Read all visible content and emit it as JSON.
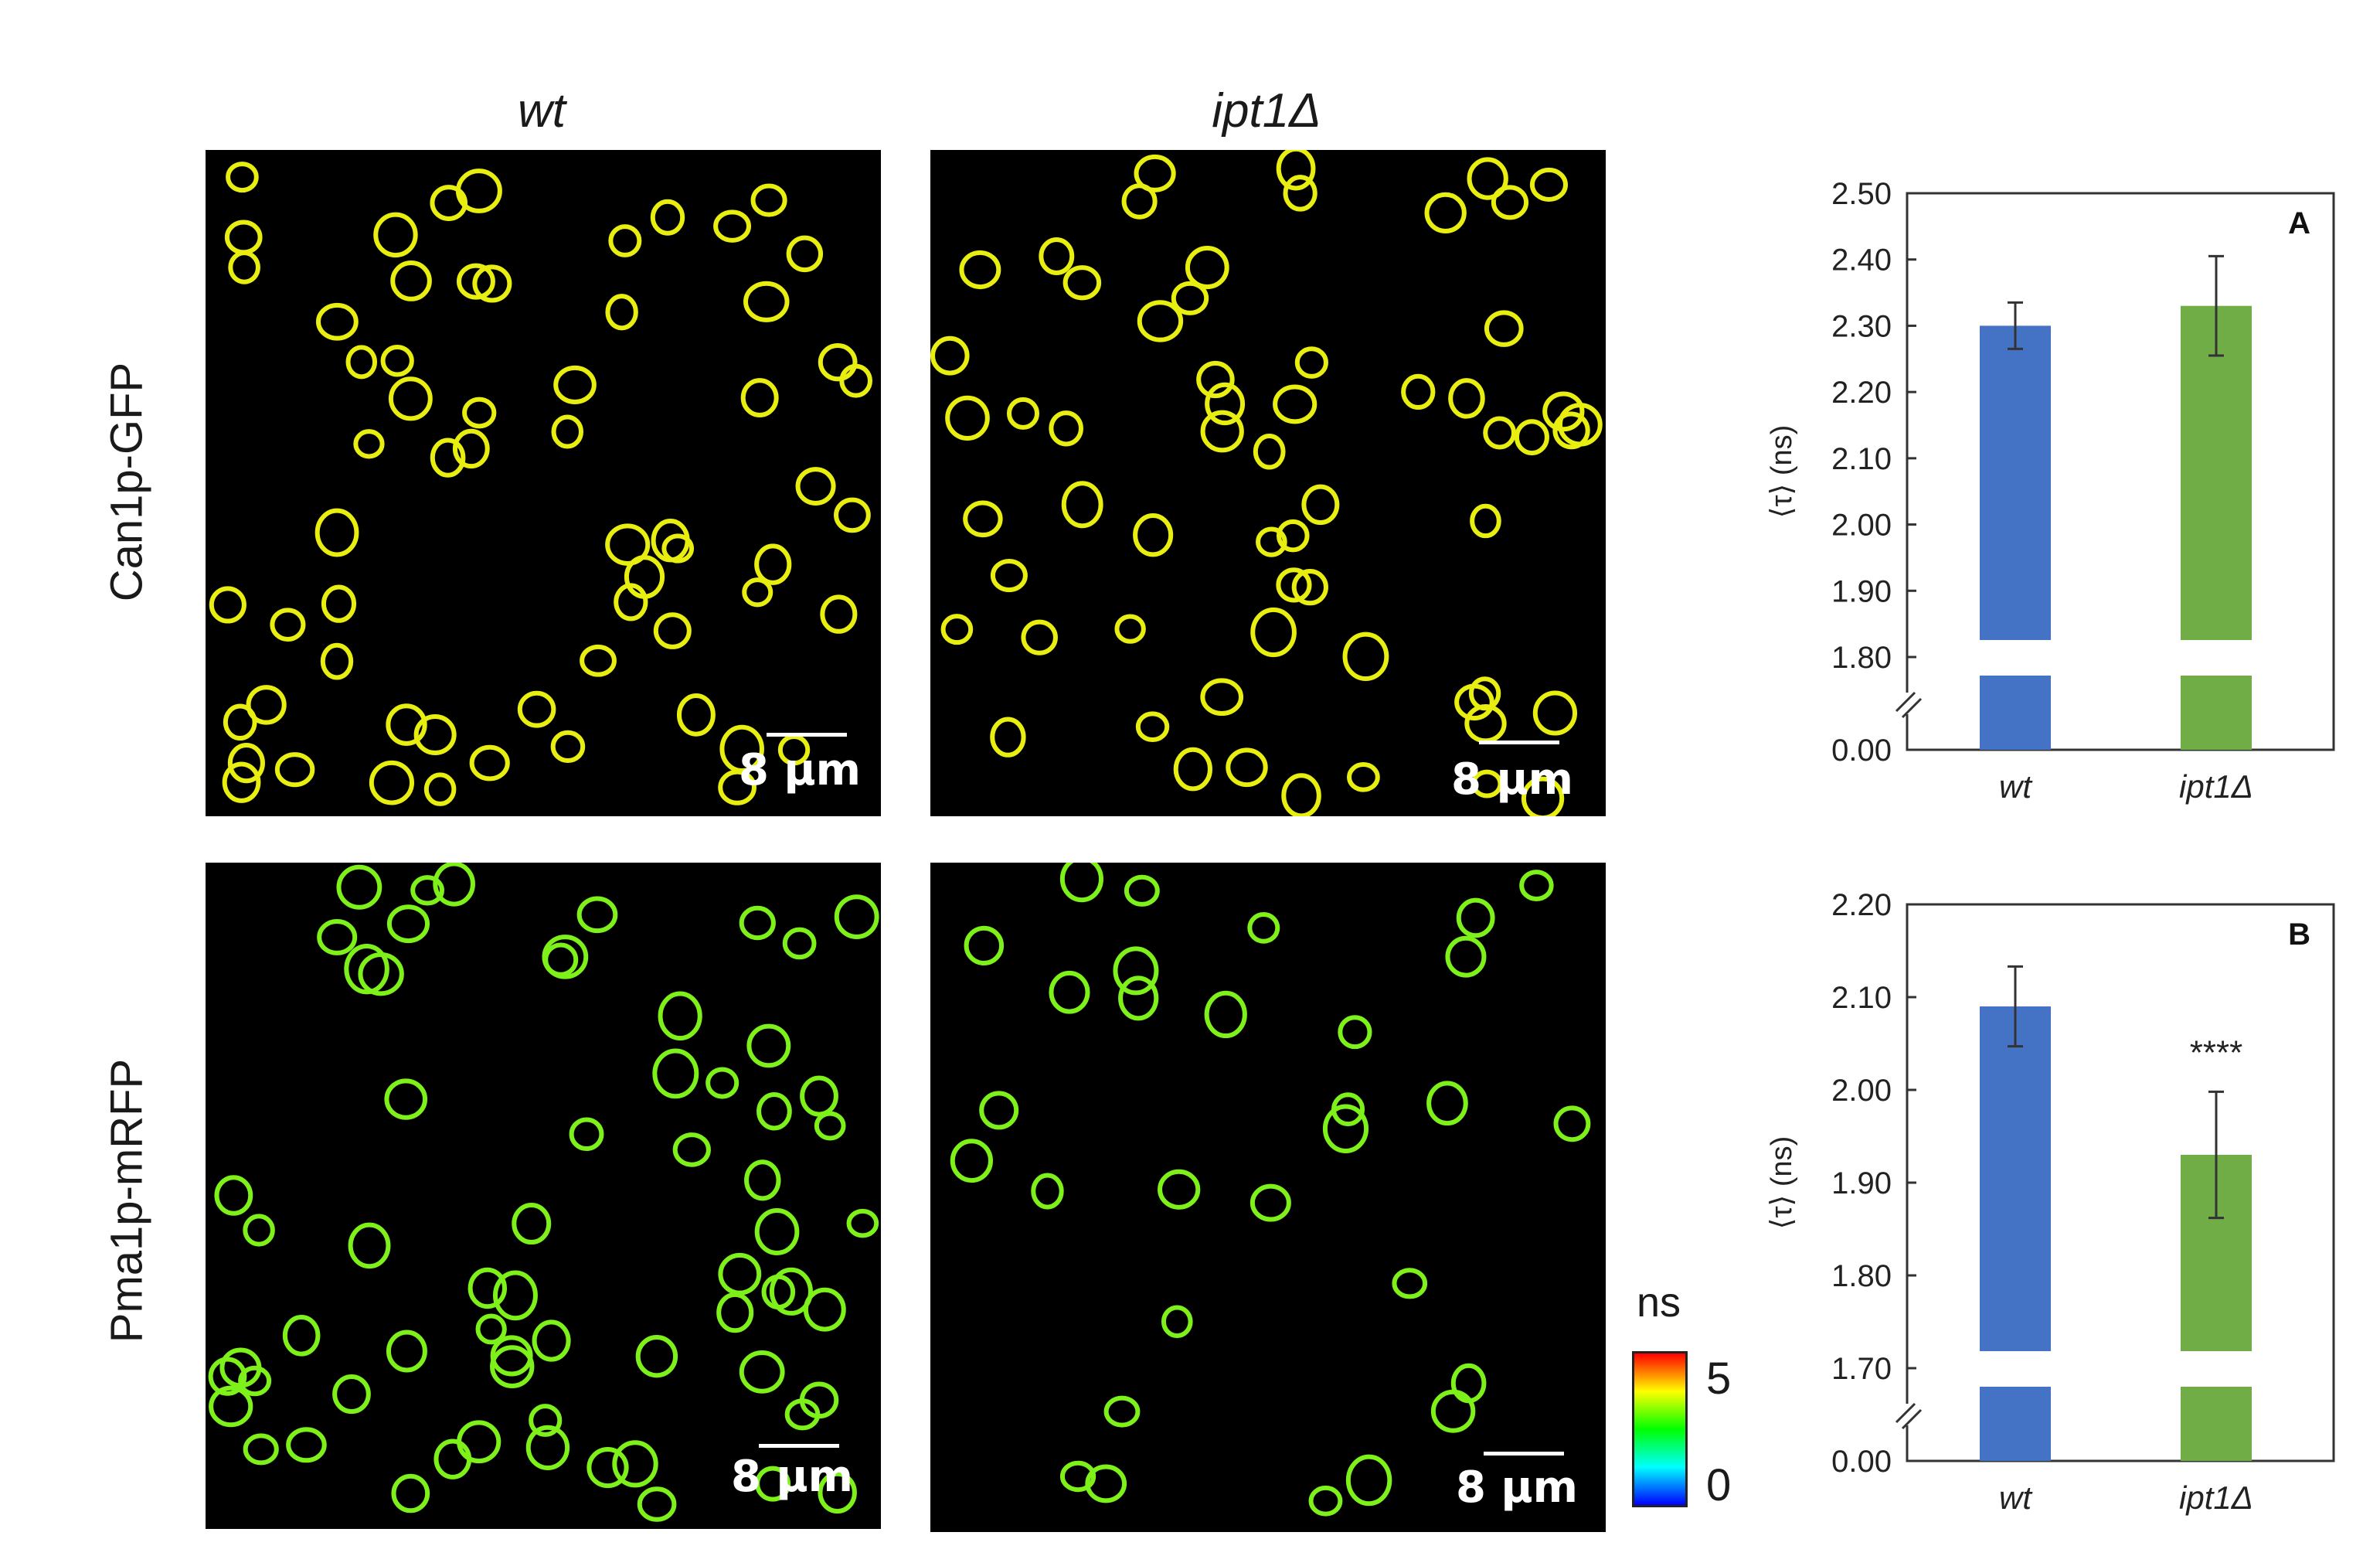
{
  "columns": {
    "wt": "wt",
    "mutant": "ipt1Δ"
  },
  "rows": {
    "top": "Can1p-GFP",
    "bottom": "Pma1p-mRFP"
  },
  "scale_bar": "8 μm",
  "colorbar": {
    "title": "ns",
    "max": "5",
    "min": "0"
  },
  "colors": {
    "wt_bar": "#4472C4",
    "mutant_bar": "#70AD47",
    "can1_cell": "#e8ee10",
    "pma1_cell": "#7ef01a"
  },
  "chart_data": [
    {
      "type": "bar",
      "panel_label": "A",
      "ylabel": "⟨τ⟩ (ns)",
      "categories": [
        "wt",
        "ipt1Δ"
      ],
      "values": [
        2.3,
        2.33
      ],
      "errors": [
        0.035,
        0.075
      ],
      "ylim": [
        1.8,
        2.5
      ],
      "yticks": [
        "2.50",
        "2.40",
        "2.30",
        "2.20",
        "2.10",
        "2.00",
        "1.90",
        "1.80"
      ],
      "broken_axis_baseline": "0.00",
      "annotation": ""
    },
    {
      "type": "bar",
      "panel_label": "B",
      "ylabel": "⟨τ⟩ (ns)",
      "categories": [
        "wt",
        "ipt1Δ"
      ],
      "values": [
        2.09,
        1.93
      ],
      "errors": [
        0.043,
        0.068
      ],
      "ylim": [
        1.7,
        2.2
      ],
      "yticks": [
        "2.20",
        "2.10",
        "2.00",
        "1.90",
        "1.80",
        "1.70"
      ],
      "broken_axis_baseline": "0.00",
      "annotation": "****"
    }
  ]
}
